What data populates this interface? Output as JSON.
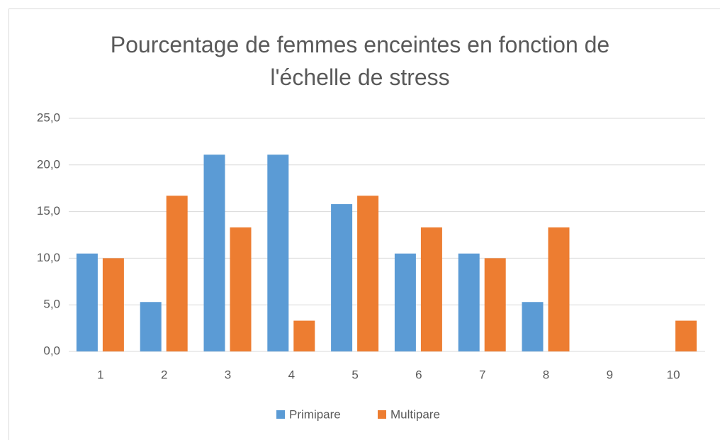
{
  "chart_data": {
    "type": "bar",
    "title": "Pourcentage de femmes enceintes en fonction de l'échelle de stress",
    "categories": [
      "1",
      "2",
      "3",
      "4",
      "5",
      "6",
      "7",
      "8",
      "9",
      "10"
    ],
    "series": [
      {
        "name": "Primipare",
        "color": "#5b9bd5",
        "values": [
          10.5,
          5.3,
          21.1,
          21.1,
          15.8,
          10.5,
          10.5,
          5.3,
          0,
          0
        ]
      },
      {
        "name": "Multipare",
        "color": "#ed7d31",
        "values": [
          10.0,
          16.7,
          13.3,
          3.3,
          16.7,
          13.3,
          10.0,
          13.3,
          0,
          3.3
        ]
      }
    ],
    "ylim": [
      0,
      25
    ],
    "yticks": [
      {
        "value": 0,
        "label": "0,0"
      },
      {
        "value": 5,
        "label": "5,0"
      },
      {
        "value": 10,
        "label": "10,0"
      },
      {
        "value": 15,
        "label": "15,0"
      },
      {
        "value": 20,
        "label": "20,0"
      },
      {
        "value": 25,
        "label": "25,0"
      }
    ],
    "grid": true,
    "legend": "bottom"
  }
}
